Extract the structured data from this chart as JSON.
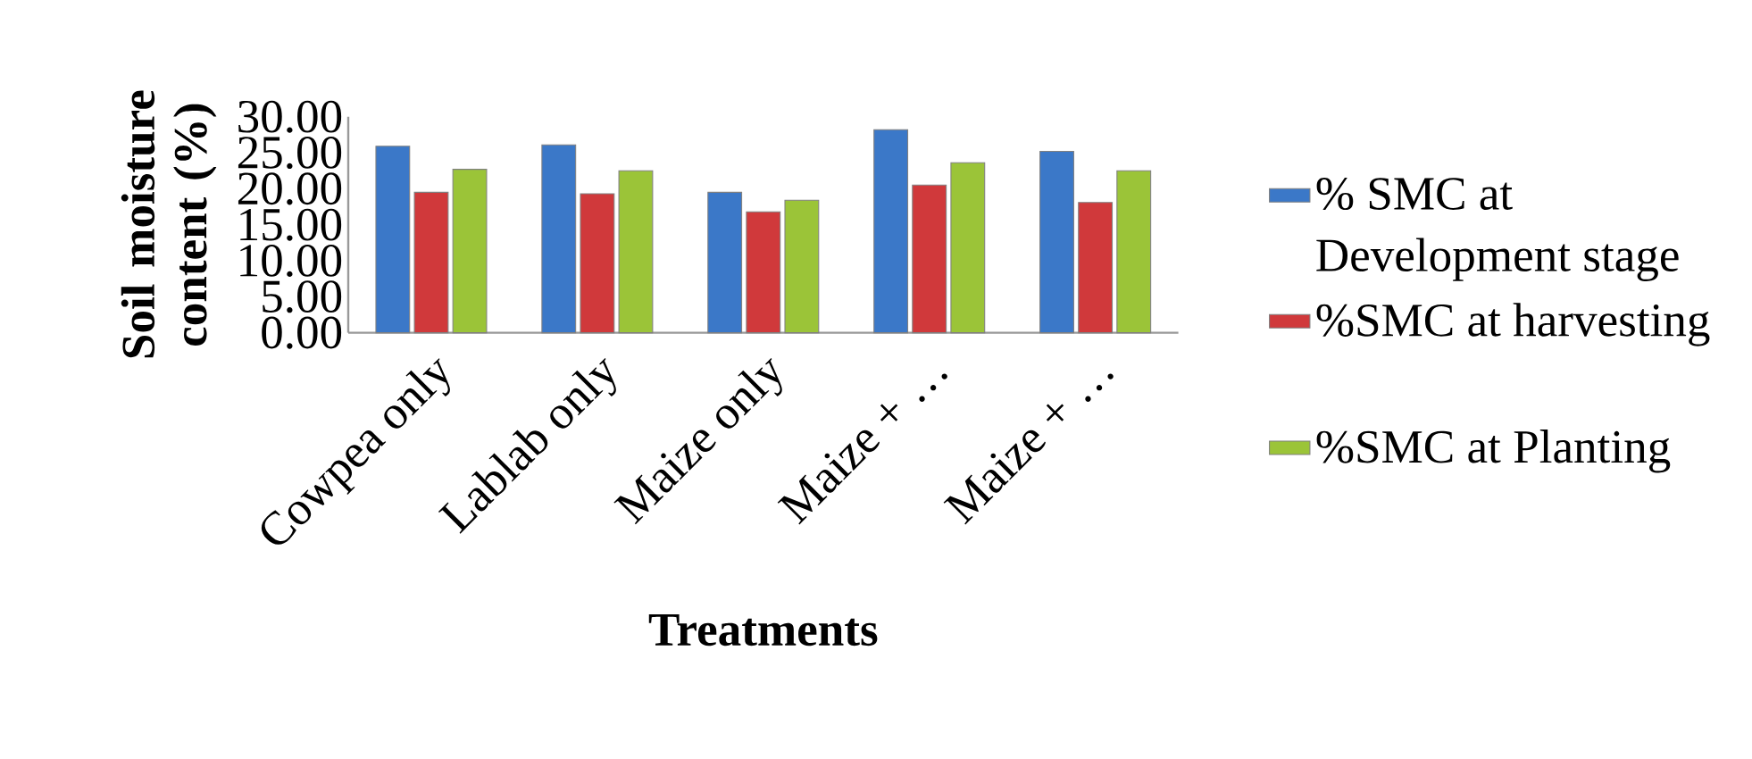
{
  "chart_data": {
    "type": "bar",
    "xlabel": "Treatments",
    "ylabel": "Soil moisture content (%)",
    "categories": [
      "Cowpea only",
      "Lablab only",
      "Maize only",
      "Maize + …",
      "Maize + …"
    ],
    "series": [
      {
        "name": "% SMC at Development stage",
        "color": "#3b78c8",
        "values": [
          25.9,
          26.1,
          19.5,
          28.2,
          25.2
        ]
      },
      {
        "name": "%SMC at harvesting",
        "color": "#d0393b",
        "values": [
          19.5,
          19.3,
          16.8,
          20.5,
          18.1
        ]
      },
      {
        "name": "%SMC at Planting",
        "color": "#9bc438",
        "values": [
          22.7,
          22.5,
          18.4,
          23.6,
          22.5
        ]
      }
    ],
    "ylim": [
      0,
      30
    ],
    "yticks": [
      {
        "value": 0,
        "label": "0.00"
      },
      {
        "value": 5,
        "label": "5.00"
      },
      {
        "value": 10,
        "label": "10.00"
      },
      {
        "value": 15,
        "label": "15.00"
      },
      {
        "value": 20,
        "label": "20.00"
      },
      {
        "value": 25,
        "label": "25.00"
      },
      {
        "value": 30,
        "label": "30.00"
      }
    ],
    "grid": false,
    "legend": "right"
  }
}
